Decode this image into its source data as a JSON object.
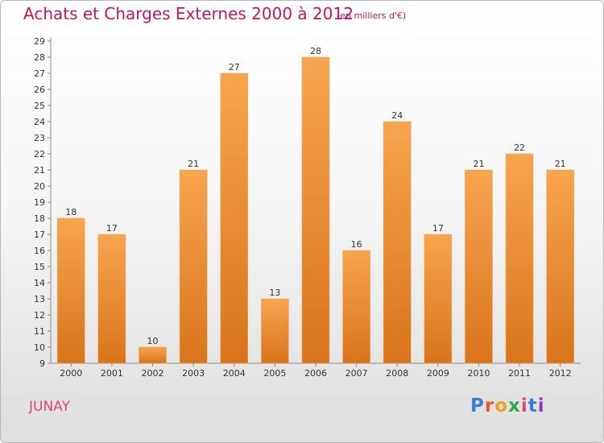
{
  "title": "Achats et Charges Externes 2000 à 2012",
  "unit": "(en milliers d'€)",
  "commune": "JUNAY",
  "logo": {
    "text": "Proxiti",
    "colors": [
      "#3a7bd5",
      "#e05a2b",
      "#f0a020",
      "#2aa84a",
      "#e04870",
      "#3a7bd5",
      "#8a3ac0"
    ]
  },
  "colors": {
    "bar_top": "#f6a54e",
    "bar_bottom": "#d9741c",
    "accent": "#c2185b"
  },
  "chart_data": {
    "type": "bar",
    "title": "Achats et Charges Externes 2000 à 2012",
    "categories": [
      "2000",
      "2001",
      "2002",
      "2003",
      "2004",
      "2005",
      "2006",
      "2007",
      "2008",
      "2009",
      "2010",
      "2011",
      "2012"
    ],
    "values": [
      18,
      17,
      10,
      21,
      27,
      13,
      28,
      16,
      24,
      17,
      21,
      22,
      21
    ],
    "ylim": [
      9,
      29
    ],
    "yticks": [
      9,
      10,
      11,
      12,
      13,
      14,
      15,
      16,
      17,
      18,
      19,
      20,
      21,
      22,
      23,
      24,
      25,
      26,
      27,
      28,
      29
    ],
    "grid": false,
    "xlabel": "",
    "ylabel": ""
  }
}
